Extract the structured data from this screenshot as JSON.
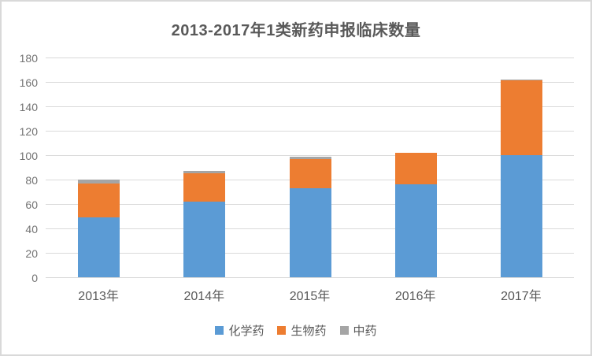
{
  "window": {
    "background": "#ffffff",
    "border_color": "#d9d9d9"
  },
  "chart_data": {
    "type": "bar",
    "stacked": true,
    "title": "2013-2017年1类新药申报临床数量",
    "categories": [
      "2013年",
      "2014年",
      "2015年",
      "2016年",
      "2017年"
    ],
    "series": [
      {
        "name": "化学药",
        "color": "#5B9BD5",
        "values": [
          49,
          62,
          73,
          76,
          100
        ]
      },
      {
        "name": "生物药",
        "color": "#ED7D31",
        "values": [
          28,
          23,
          24,
          26,
          61
        ]
      },
      {
        "name": "中药",
        "color": "#A5A5A5",
        "values": [
          3,
          2,
          2,
          0,
          1
        ]
      }
    ],
    "totals": [
      80,
      87,
      99,
      102,
      162
    ],
    "ylim": [
      0,
      180
    ],
    "y_ticks": [
      0,
      20,
      40,
      60,
      80,
      100,
      120,
      140,
      160,
      180
    ],
    "grid": true,
    "gridline_color": "#D9D9D9",
    "axis_text_color": "#737373",
    "category_text_color": "#595959",
    "title_color": "#595959",
    "legend_position": "bottom",
    "legend_entries": [
      "化学药",
      "生物药",
      "中药"
    ]
  }
}
